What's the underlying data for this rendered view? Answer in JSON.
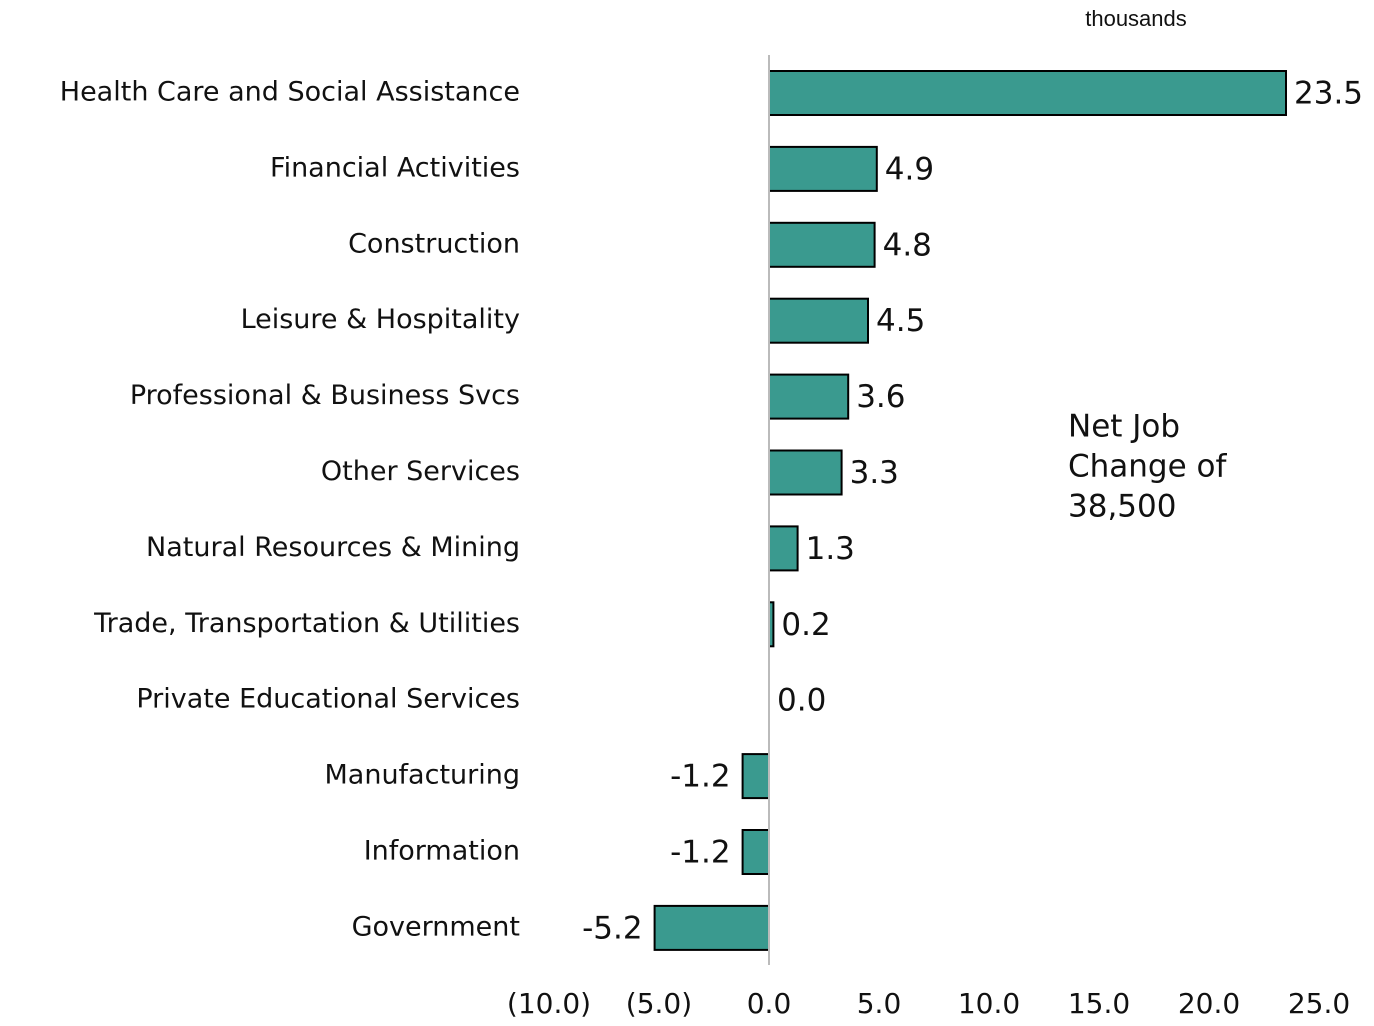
{
  "chart_data": {
    "type": "barh",
    "unit_label": "thousands",
    "annotation": [
      "Net Job",
      "Change of",
      "38,500"
    ],
    "categories": [
      "Health Care and Social Assistance",
      "Financial Activities",
      "Construction",
      "Leisure & Hospitality",
      "Professional & Business Svcs",
      "Other Services",
      "Natural Resources & Mining",
      "Trade, Transportation & Utilities",
      "Private Educational Services",
      "Manufacturing",
      "Information",
      "Government"
    ],
    "values": [
      23.5,
      4.9,
      4.8,
      4.5,
      3.6,
      3.3,
      1.3,
      0.2,
      0.0,
      -1.2,
      -1.2,
      -5.2
    ],
    "value_labels": [
      "23.5",
      "4.9",
      "4.8",
      "4.5",
      "3.6",
      "3.3",
      "1.3",
      "0.2",
      "0.0",
      "-1.2",
      "-1.2",
      "-5.2"
    ],
    "color": "#3a9a8f",
    "xlim": [
      -10,
      25
    ],
    "xticks": [
      {
        "value": -10,
        "label": "(10.0)"
      },
      {
        "value": -5,
        "label": "(5.0)"
      },
      {
        "value": 0,
        "label": "0.0"
      },
      {
        "value": 5,
        "label": "5.0"
      },
      {
        "value": 10,
        "label": "10.0"
      },
      {
        "value": 15,
        "label": "15.0"
      },
      {
        "value": 20,
        "label": "20.0"
      },
      {
        "value": 25,
        "label": "25.0"
      }
    ],
    "grid": false
  }
}
